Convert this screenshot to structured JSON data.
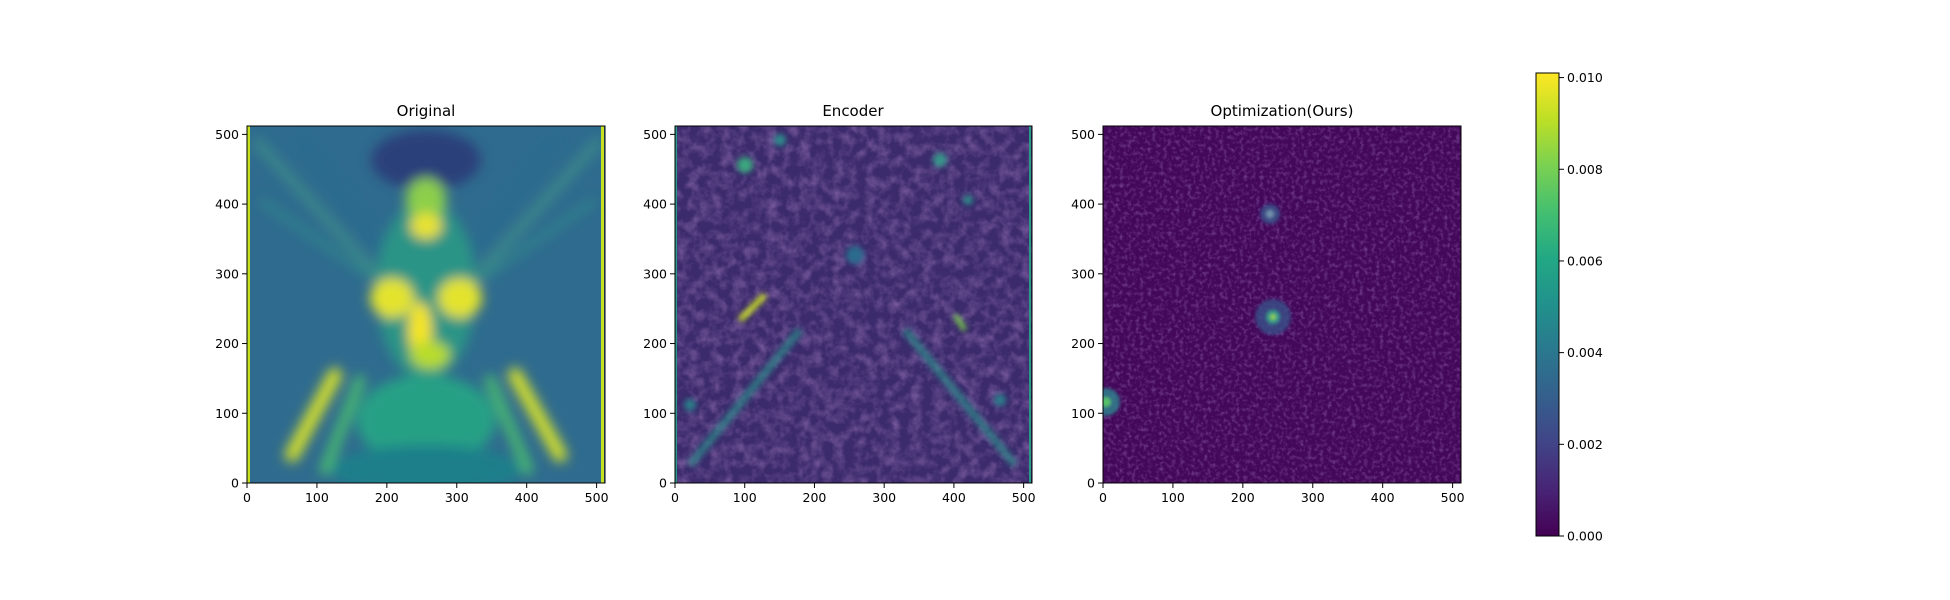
{
  "chart_data": {
    "type": "heatmap",
    "panels": [
      {
        "title": "Original",
        "xticks": [
          "0",
          "100",
          "200",
          "300",
          "400",
          "500"
        ],
        "yticks": [
          "0",
          "100",
          "200",
          "300",
          "400",
          "500"
        ],
        "y_direction": "down",
        "xlim": [
          0,
          512
        ],
        "ylim": [
          512,
          0
        ]
      },
      {
        "title": "Encoder",
        "xticks": [
          "0",
          "100",
          "200",
          "300",
          "400",
          "500"
        ],
        "yticks": [
          "0",
          "100",
          "200",
          "300",
          "400",
          "500"
        ],
        "y_direction": "up",
        "xlim": [
          0,
          512
        ],
        "ylim": [
          0,
          512
        ]
      },
      {
        "title": "Optimization(Ours)",
        "xticks": [
          "0",
          "100",
          "200",
          "300",
          "400",
          "500"
        ],
        "yticks": [
          "0",
          "100",
          "200",
          "300",
          "400",
          "500"
        ],
        "y_direction": "up",
        "xlim": [
          0,
          512
        ],
        "ylim": [
          0,
          512
        ]
      }
    ],
    "colorbar": {
      "colormap": "viridis",
      "range": [
        0.0,
        0.0101
      ],
      "ticks": [
        "0.000",
        "0.002",
        "0.004",
        "0.006",
        "0.008",
        "0.010"
      ]
    }
  }
}
